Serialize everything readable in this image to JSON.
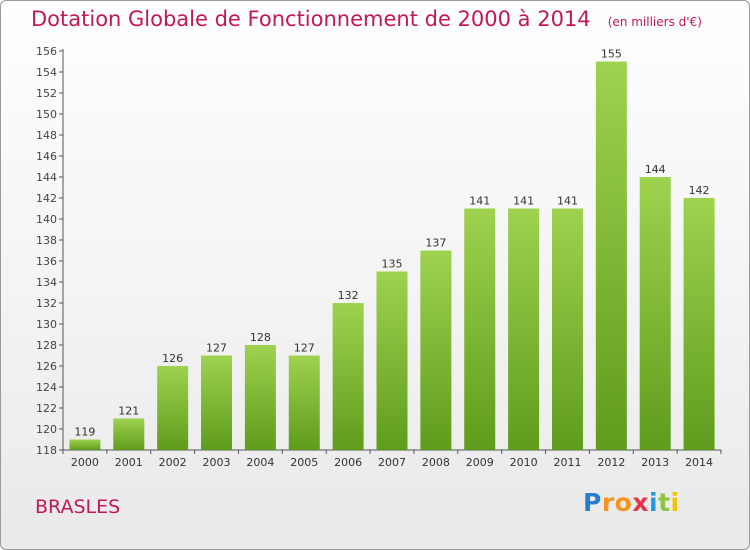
{
  "header": {
    "title": "Dotation Globale de Fonctionnement de 2000 à 2014",
    "unit": "(en milliers d'€)"
  },
  "footer": {
    "commune": "BRASLES",
    "logo_letters": [
      "P",
      "r",
      "o",
      "x",
      "i",
      "t",
      "i"
    ]
  },
  "colors": {
    "title": "#c2185b",
    "bar_light": "#9ed24f",
    "bar_dark": "#5f9c1c",
    "axis": "#555555"
  },
  "chart_data": {
    "type": "bar",
    "title": "Dotation Globale de Fonctionnement de 2000 à 2014",
    "subtitle": "(en milliers d'€)",
    "categories": [
      "2000",
      "2001",
      "2002",
      "2003",
      "2004",
      "2005",
      "2006",
      "2007",
      "2008",
      "2009",
      "2010",
      "2011",
      "2012",
      "2013",
      "2014"
    ],
    "values": [
      119,
      121,
      126,
      127,
      128,
      127,
      132,
      135,
      137,
      141,
      141,
      141,
      155,
      144,
      142
    ],
    "ylim": [
      118,
      156
    ],
    "yticks": [
      118,
      120,
      122,
      124,
      126,
      128,
      130,
      132,
      134,
      136,
      138,
      140,
      142,
      144,
      146,
      148,
      150,
      152,
      154,
      156
    ],
    "grid": false,
    "legend": "none"
  }
}
